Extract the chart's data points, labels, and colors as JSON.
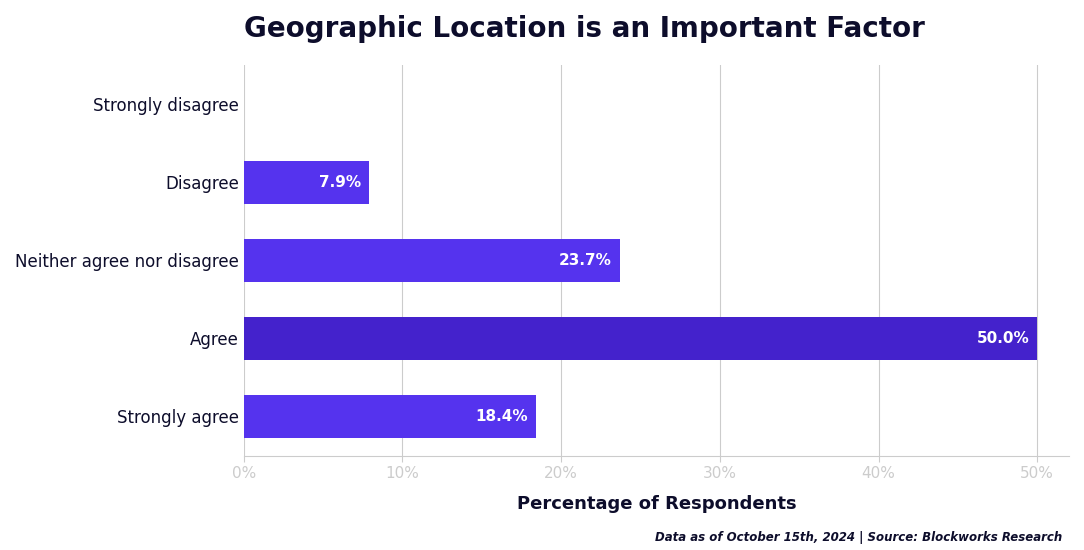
{
  "title": "Geographic Location is an Important Factor",
  "categories": [
    "Strongly agree",
    "Agree",
    "Neither agree nor disagree",
    "Disagree",
    "Strongly disagree"
  ],
  "values": [
    18.4,
    50.0,
    23.7,
    7.9,
    0.0
  ],
  "bar_colors": [
    "#5533EE",
    "#4422CC",
    "#5533EE",
    "#5533EE",
    "#5533EE"
  ],
  "label_color": "#FFFFFF",
  "xlabel": "Percentage of Respondents",
  "xlim": [
    0,
    52
  ],
  "xtick_labels": [
    "0%",
    "10%",
    "20%",
    "30%",
    "40%",
    "50%"
  ],
  "xtick_values": [
    0,
    10,
    20,
    30,
    40,
    50
  ],
  "title_fontsize": 20,
  "label_fontsize": 11,
  "xlabel_fontsize": 13,
  "tick_fontsize": 11,
  "ytick_fontsize": 12,
  "footer": "Data as of October 15th, 2024 | Source: Blockworks Research",
  "background_color": "#FFFFFF",
  "grid_color": "#CCCCCC",
  "title_color": "#0D0D2B",
  "axis_label_color": "#0D0D2B",
  "tick_label_color": "#0D0D2B",
  "footer_color": "#0D0D2B"
}
